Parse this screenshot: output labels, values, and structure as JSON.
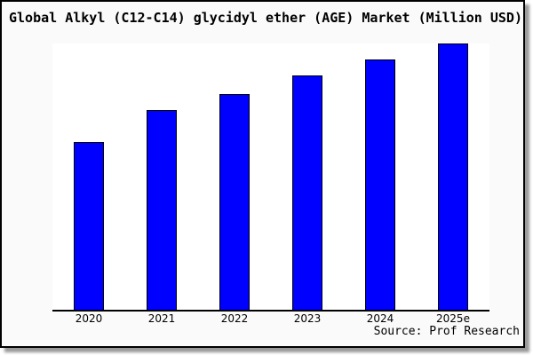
{
  "title": "Global Alkyl (C12-C14) glycidyl ether (AGE) Market (Million USD)",
  "source_note": "Source: Prof Research",
  "colors": {
    "bar_fill": "#0000ff",
    "bar_border": "#000000",
    "axis": "#000000",
    "figure_background": "#fafafa",
    "plot_background": "#ffffff",
    "frame_border": "#000000",
    "shadow": "#999999",
    "text": "#000000"
  },
  "chart_data": {
    "type": "bar",
    "title": "Global Alkyl (C12-C14) glycidyl ether (AGE) Market (Million USD)",
    "categories": [
      "2020",
      "2021",
      "2022",
      "2023",
      "2024",
      "2025e"
    ],
    "values": [
      63,
      75,
      81,
      88,
      94,
      100
    ],
    "value_scale_note": "no y-axis ticks or gridlines shown; values are relative bar heights with 2025e = 100",
    "xlabel": "",
    "ylabel": "",
    "ylim": [
      0,
      100
    ],
    "grid": false,
    "legend": false,
    "legend_position": "none",
    "bar_color": "#0000ff",
    "bar_border_color": "#000000",
    "annotation": "Source: Prof Research"
  }
}
